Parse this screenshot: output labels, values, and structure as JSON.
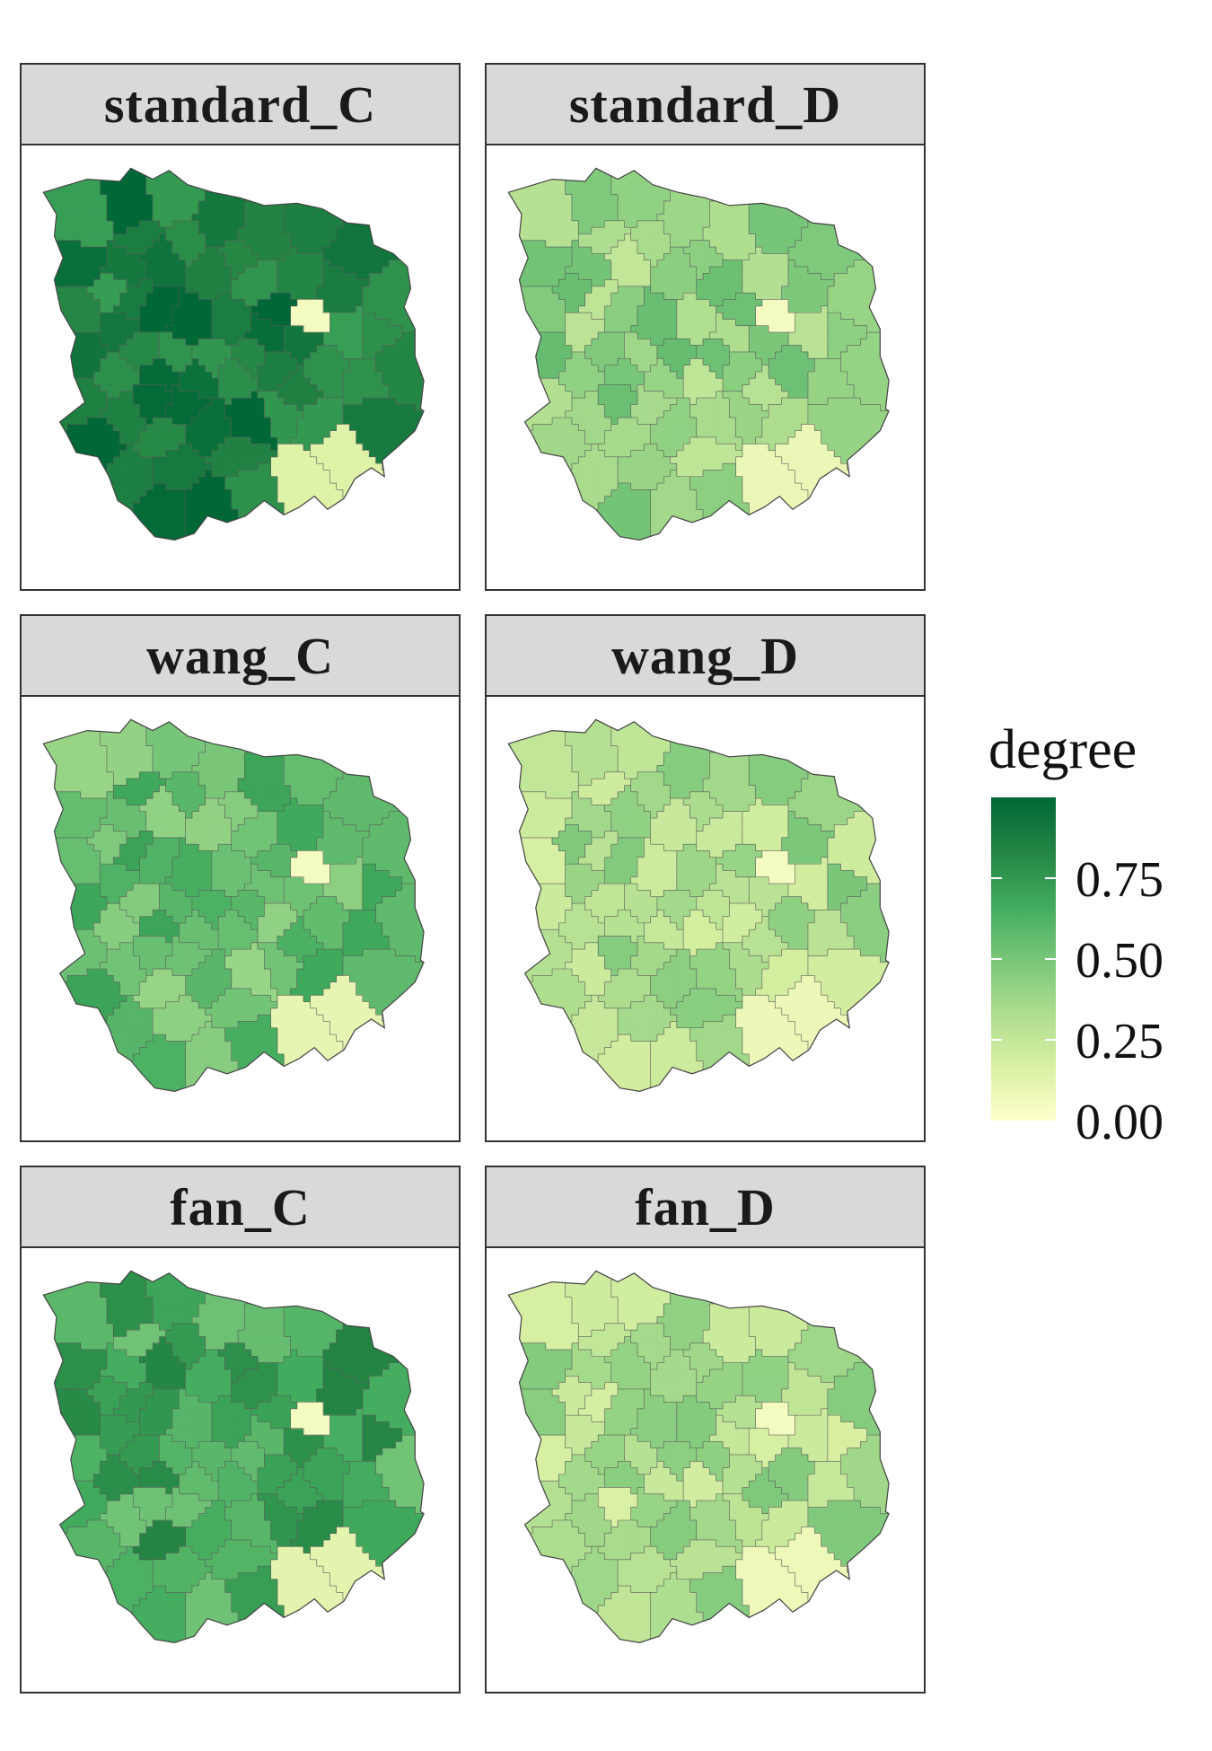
{
  "panels": [
    {
      "label": "standard_C",
      "level": 0.88
    },
    {
      "label": "standard_D",
      "level": 0.4
    },
    {
      "label": "wang_C",
      "level": 0.55
    },
    {
      "label": "wang_D",
      "level": 0.33
    },
    {
      "label": "fan_C",
      "level": 0.68
    },
    {
      "label": "fan_D",
      "level": 0.32
    }
  ],
  "legend": {
    "title": "degree",
    "ticks": [
      "0.75",
      "0.50",
      "0.25",
      "0.00"
    ],
    "range": [
      0,
      1
    ],
    "colors": [
      "#ffffcc",
      "#d9f0a3",
      "#addd8e",
      "#78c679",
      "#41ab5d",
      "#238443",
      "#006837"
    ]
  }
}
